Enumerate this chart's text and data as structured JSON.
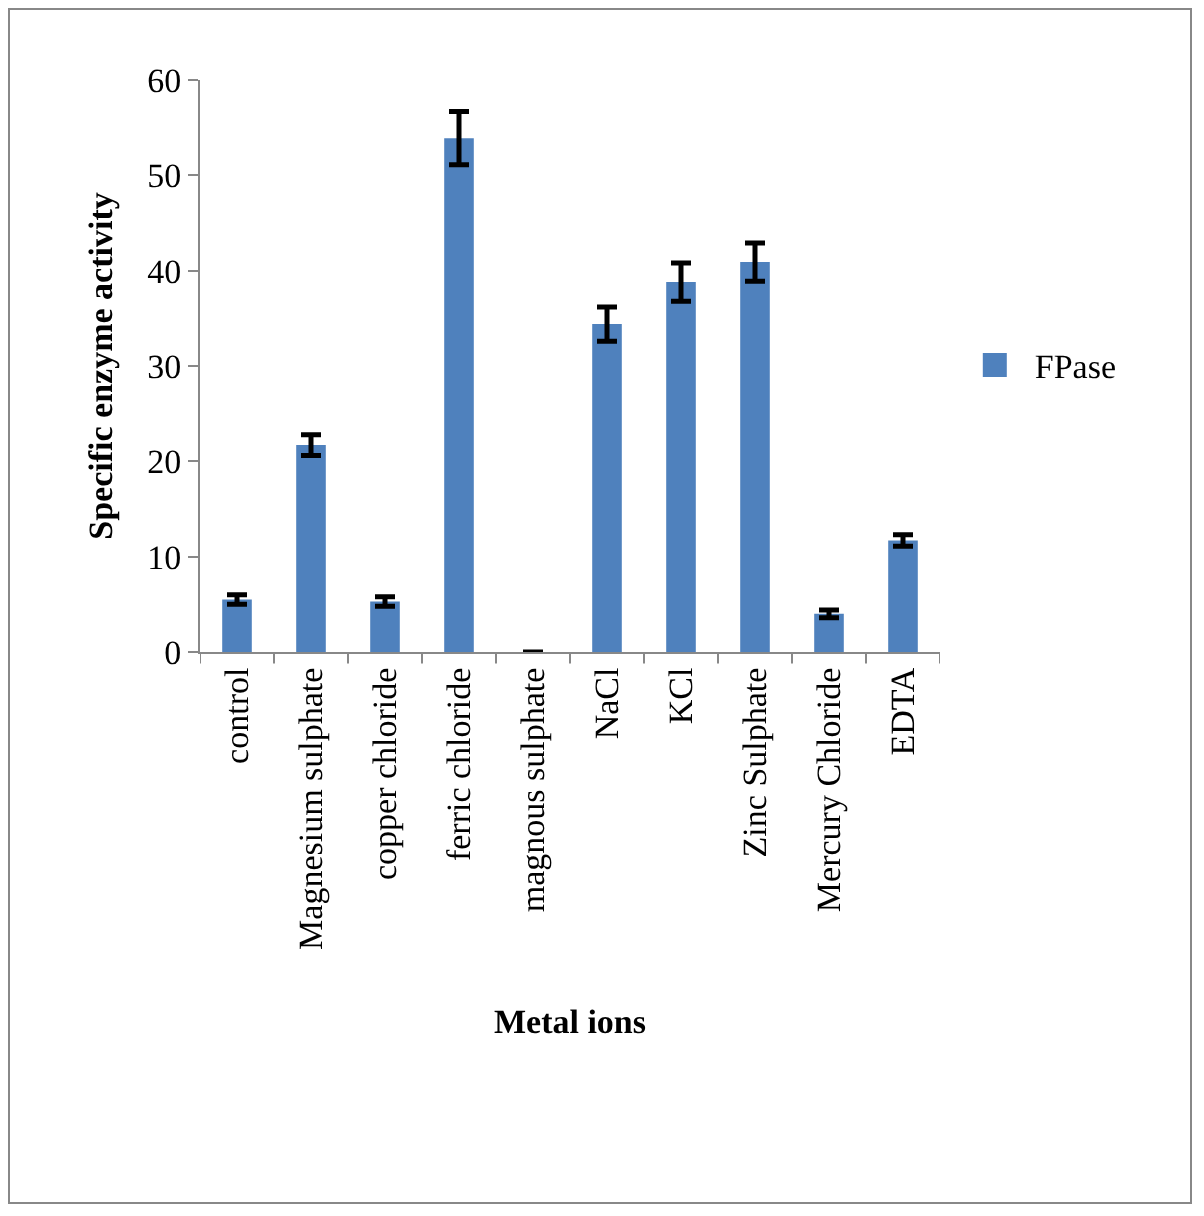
{
  "chart_data": {
    "type": "bar",
    "xlabel": "Metal ions",
    "ylabel": "Specific enzyme activity",
    "categories": [
      "control",
      "Magnesium sulphate",
      "copper chloride",
      "ferric chloride",
      "magnous sulphate",
      "NaCl",
      "KCl",
      "Zinc Sulphate",
      "Mercury Chloride",
      "EDTA"
    ],
    "series": [
      {
        "name": "FPase",
        "color": "#4f81bd",
        "values": [
          5.5,
          21.7,
          5.3,
          53.9,
          0,
          34.4,
          38.8,
          40.9,
          4.0,
          11.7
        ],
        "errors": [
          0.5,
          1.1,
          0.5,
          2.8,
          null,
          1.8,
          2.0,
          2.0,
          0.4,
          0.6
        ]
      }
    ],
    "ylim": [
      0,
      60
    ],
    "yticks": [
      0,
      10,
      20,
      30,
      40,
      50,
      60
    ],
    "grid": false,
    "legend": "right"
  }
}
